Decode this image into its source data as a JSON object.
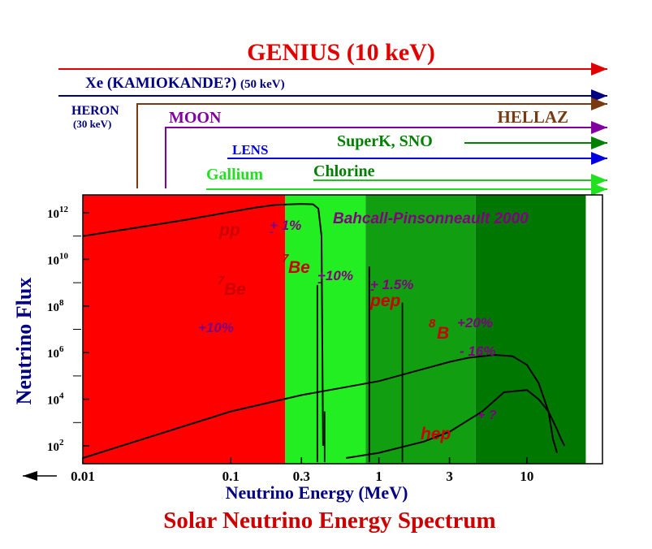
{
  "page": {
    "main_title": "Solar Neutrino Energy Spectrum"
  },
  "detectors": {
    "genius": "GENIUS (10 keV)",
    "xe": "Xe (KAMIOKANDE?)",
    "xe_threshold": "(50 keV)",
    "heron": "HERON",
    "heron_threshold": "(30 keV)",
    "moon": "MOON",
    "hellaz": "HELLAZ",
    "superk": "SuperK, SNO",
    "lens": "LENS",
    "gallium": "Gallium",
    "chlorine": "Chlorine"
  },
  "colors": {
    "genius": "#e00000",
    "xe": "#000080",
    "heron": "#7a3a10",
    "moon": "#8000a0",
    "superk": "#008000",
    "lens": "#0000e0",
    "gallium": "#20e020",
    "region_red": "#ff0000",
    "region_bright_green": "#22ee22",
    "region_mid_green": "#11bb11",
    "region_green": "#119f11",
    "region_dark_green": "#007700",
    "label_red": "#cc0000",
    "label_purple": "#800080",
    "axis_navy": "#000080"
  },
  "chart_data": {
    "type": "line",
    "title": "Solar Neutrino Energy Spectrum",
    "subtitle": "Bahcall-Pinsonneault 2000",
    "xlabel": "Neutrino Energy (MeV)",
    "ylabel": "Neutrino Flux",
    "xscale": "log",
    "yscale": "log",
    "xlim": [
      0.01,
      25
    ],
    "ylim": [
      10,
      10000000000000.0
    ],
    "grid": false,
    "x_ticks": [
      "0.01",
      "0.1",
      "0.3",
      "1",
      "3",
      "10"
    ],
    "x_tick_values": [
      0.01,
      0.1,
      0.3,
      1,
      3,
      10
    ],
    "y_ticks": [
      {
        "base": "10",
        "exp": "2",
        "value": 100
      },
      {
        "base": "10",
        "exp": "4",
        "value": 10000
      },
      {
        "base": "10",
        "exp": "6",
        "value": 1000000
      },
      {
        "base": "10",
        "exp": "8",
        "value": 100000000
      },
      {
        "base": "10",
        "exp": "10",
        "value": 10000000000
      },
      {
        "base": "10",
        "exp": "12",
        "value": 1000000000000
      }
    ],
    "regions": [
      {
        "from": 0.01,
        "to": 0.233,
        "color": "#ff0000"
      },
      {
        "from": 0.233,
        "to": 0.814,
        "color": "#22ee22"
      },
      {
        "from": 0.814,
        "to": 4.5,
        "color": "#119f11"
      },
      {
        "from": 4.5,
        "to": 25,
        "color": "#007700"
      }
    ],
    "series": [
      {
        "name": "pp",
        "style": "continuum",
        "x": [
          0.01,
          0.02,
          0.05,
          0.1,
          0.15,
          0.2,
          0.3,
          0.36,
          0.39,
          0.41,
          0.42
        ],
        "y": [
          100000000000.0,
          200000000000.0,
          500000000000.0,
          1100000000000.0,
          1700000000000.0,
          2200000000000.0,
          2400000000000.0,
          2300000000000.0,
          1500000000000.0,
          100000000000.0,
          100.0
        ]
      },
      {
        "name": "8B",
        "style": "continuum",
        "x": [
          0.01,
          0.1,
          0.3,
          1,
          3,
          4,
          6,
          8,
          10,
          12,
          14,
          15,
          16
        ],
        "y": [
          30,
          3000,
          15000,
          60000,
          400000,
          600000,
          800000,
          700000,
          300000,
          50000,
          3000,
          200,
          50
        ]
      },
      {
        "name": "hep",
        "style": "continuum",
        "x": [
          0.6,
          1,
          2,
          3,
          5,
          7,
          10,
          12,
          14,
          16,
          17,
          18
        ],
        "y": [
          30,
          50,
          150,
          400,
          3000,
          20000,
          25000,
          10000,
          3000,
          500,
          200,
          100
        ]
      },
      {
        "name": "7Be",
        "style": "line",
        "x": [
          0.384,
          0.384
        ],
        "y": [
          20,
          800000000.0
        ]
      },
      {
        "name": "7Be",
        "style": "line",
        "x": [
          0.862,
          0.862
        ],
        "y": [
          20,
          5000000000.0
        ]
      },
      {
        "name": "pep",
        "style": "line",
        "x": [
          1.442,
          1.442
        ],
        "y": [
          20,
          140000000.0
        ]
      },
      {
        "name": "pp",
        "style": "line",
        "x": [
          0.43,
          0.43
        ],
        "y": [
          20,
          3000.0
        ]
      }
    ],
    "annotations": {
      "pp_label": "pp",
      "pp_unc": "+ 1%",
      "pp_unc2": "-",
      "be7a_sup": "7",
      "be7a_label": "Be",
      "be7a_unc": "+10%",
      "be7b_sup": "7",
      "be7b_label": "Be",
      "be7b_unc": "+10%",
      "be7b_unc2": "-",
      "pep_label": "pep",
      "pep_unc": "+ 1.5%",
      "pep_unc2": "-",
      "b8_sup": "8",
      "b8_label": "B",
      "b8_unc_plus": "+20%",
      "b8_unc_minus": "- 16%",
      "hep_label": "hep",
      "hep_unc": "+ ?"
    }
  }
}
